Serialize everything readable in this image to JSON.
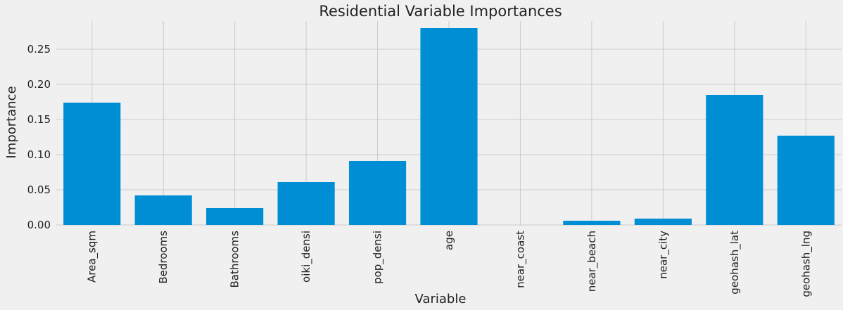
{
  "chart_data": {
    "type": "bar",
    "title": "Residential Variable Importances",
    "xlabel": "Variable",
    "ylabel": "Importance",
    "categories": [
      "Area_sqm",
      "Bedrooms",
      "Bathrooms",
      "oiki_densi",
      "pop_densi",
      "age",
      "near_coast",
      "near_beach",
      "near_city",
      "geohash_lat",
      "geohash_lng"
    ],
    "values": [
      0.174,
      0.042,
      0.024,
      0.061,
      0.091,
      0.28,
      0.0,
      0.006,
      0.009,
      0.185,
      0.127
    ],
    "ylim": [
      0,
      0.29
    ],
    "yticks": [
      0.0,
      0.05,
      0.1,
      0.15,
      0.2,
      0.25
    ],
    "ytick_labels": [
      "0.00",
      "0.05",
      "0.10",
      "0.15",
      "0.20",
      "0.25"
    ],
    "grid": true,
    "bar_color": "#008fd5",
    "background_color": "#f0f0f0",
    "grid_color": "#cbcbcb"
  }
}
